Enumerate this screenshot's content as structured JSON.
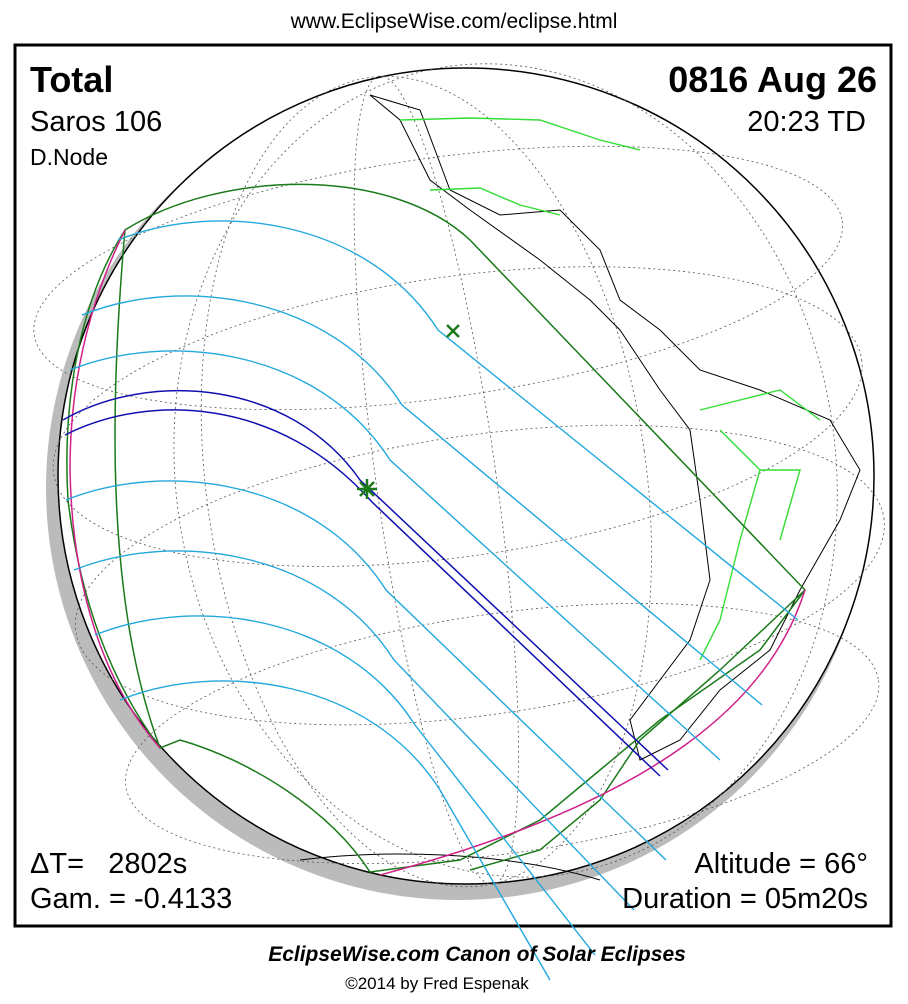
{
  "header": {
    "url": "www.EclipseWise.com/eclipse.html"
  },
  "eclipse": {
    "type": "Total",
    "saros": "Saros 106",
    "node": "D.Node",
    "date": "0816 Aug 26",
    "time": "20:23 TD"
  },
  "parameters": {
    "delta_t": "ΔT=   2802s",
    "gamma": "Gam. = -0.4133",
    "altitude": "Altitude = 66°",
    "duration": "Duration = 05m20s"
  },
  "footer": {
    "title": "EclipseWise.com Canon of Solar Eclipses",
    "copyright": "©2014 by Fred Espenak"
  }
}
